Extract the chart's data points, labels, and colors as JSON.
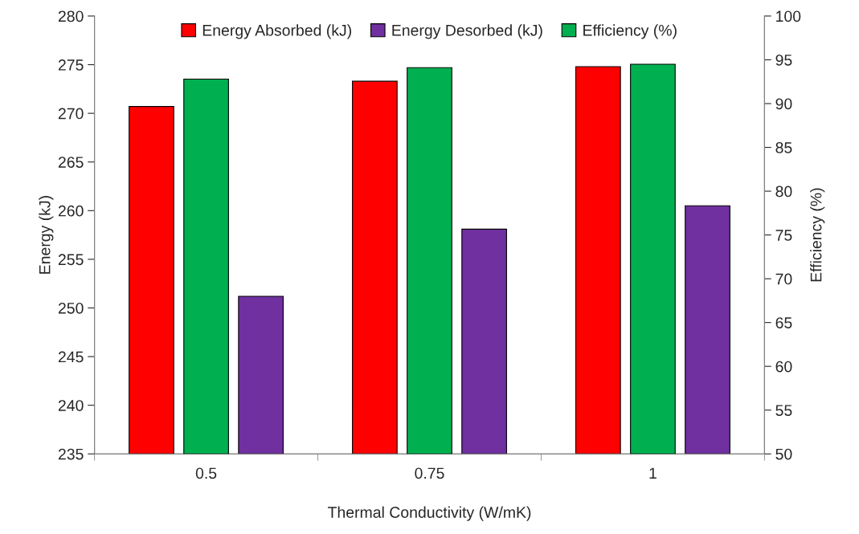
{
  "chart_data": {
    "type": "bar",
    "xlabel": "Thermal Conductivity (W/mK)",
    "ylabel": "Energy (kJ)",
    "y2label": "Efficiency (%)",
    "categories": [
      "0.5",
      "0.75",
      "1"
    ],
    "series": [
      {
        "name": "Energy Absorbed (kJ)",
        "color": "#ff0000",
        "values": [
          270.7,
          273.3,
          274.8
        ]
      },
      {
        "name": "Efficiency (%)",
        "color": "#00b050",
        "values": [
          92.8,
          94.1,
          94.5
        ],
        "axis": "y2"
      },
      {
        "name": "Energy Desorbed (kJ)",
        "color": "#7030a0",
        "values": [
          251.2,
          258.1,
          260.5
        ]
      }
    ],
    "ylim": [
      235,
      280
    ],
    "yticks": [
      235,
      240,
      245,
      250,
      255,
      260,
      265,
      270,
      275,
      280
    ],
    "y2lim": [
      50,
      100
    ],
    "y2ticks": [
      50,
      55,
      60,
      65,
      70,
      75,
      80,
      85,
      90,
      95,
      100
    ],
    "grid": false,
    "legend": "top"
  }
}
